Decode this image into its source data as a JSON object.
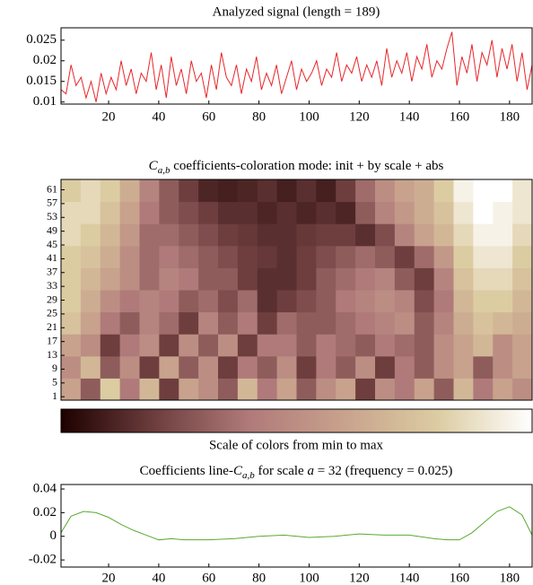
{
  "chart_data": [
    {
      "type": "line",
      "title": "Analyzed signal (length = 189)",
      "x": [
        1,
        3,
        5,
        7,
        9,
        11,
        13,
        15,
        17,
        19,
        21,
        23,
        25,
        27,
        29,
        31,
        33,
        35,
        37,
        39,
        41,
        43,
        45,
        47,
        49,
        51,
        53,
        55,
        57,
        59,
        61,
        63,
        65,
        67,
        69,
        71,
        73,
        75,
        77,
        79,
        81,
        83,
        85,
        87,
        89,
        91,
        93,
        95,
        97,
        99,
        101,
        103,
        105,
        107,
        109,
        111,
        113,
        115,
        117,
        119,
        121,
        123,
        125,
        127,
        129,
        131,
        133,
        135,
        137,
        139,
        141,
        143,
        145,
        147,
        149,
        151,
        153,
        155,
        157,
        159,
        161,
        163,
        165,
        167,
        169,
        171,
        173,
        175,
        177,
        179,
        181,
        183,
        185,
        187,
        189
      ],
      "series": [
        {
          "color": "#e8262a",
          "values": [
            0.013,
            0.012,
            0.019,
            0.014,
            0.016,
            0.011,
            0.015,
            0.01,
            0.017,
            0.012,
            0.016,
            0.013,
            0.02,
            0.014,
            0.018,
            0.012,
            0.017,
            0.015,
            0.022,
            0.013,
            0.019,
            0.011,
            0.021,
            0.014,
            0.018,
            0.012,
            0.02,
            0.015,
            0.017,
            0.011,
            0.019,
            0.013,
            0.022,
            0.016,
            0.014,
            0.019,
            0.012,
            0.018,
            0.015,
            0.021,
            0.013,
            0.017,
            0.014,
            0.019,
            0.012,
            0.016,
            0.02,
            0.013,
            0.018,
            0.015,
            0.017,
            0.02,
            0.014,
            0.018,
            0.016,
            0.022,
            0.015,
            0.019,
            0.017,
            0.021,
            0.015,
            0.019,
            0.016,
            0.02,
            0.014,
            0.023,
            0.016,
            0.02,
            0.017,
            0.022,
            0.015,
            0.021,
            0.018,
            0.024,
            0.016,
            0.02,
            0.018,
            0.023,
            0.027,
            0.014,
            0.021,
            0.017,
            0.024,
            0.015,
            0.022,
            0.019,
            0.025,
            0.016,
            0.023,
            0.018,
            0.024,
            0.015,
            0.022,
            0.013,
            0.019
          ]
        }
      ],
      "xlim": [
        1,
        189
      ],
      "xticks": [
        20,
        40,
        60,
        80,
        100,
        120,
        140,
        160,
        180
      ],
      "ylim": [
        0.0095,
        0.028
      ],
      "yticks": [
        0.01,
        0.015,
        0.02,
        0.025
      ]
    },
    {
      "type": "heatmap",
      "title_parts": [
        "C",
        "a,b",
        " coefficients-coloration mode: init + by scale + abs"
      ],
      "xlim": [
        0,
        189
      ],
      "ylim": [
        0,
        64
      ],
      "yticks": [
        1,
        5,
        9,
        13,
        17,
        21,
        25,
        29,
        33,
        37,
        41,
        45,
        49,
        53,
        57,
        61
      ],
      "zlim": [
        0,
        1
      ],
      "colormap": [
        "#1e0000",
        "#6e3e3e",
        "#b07a7a",
        "#c8a28c",
        "#dccca2",
        "#ffffff"
      ],
      "z": [
        [
          0.6,
          0.3,
          0.8,
          0.4,
          0.7,
          0.2,
          0.6,
          0.5,
          0.3,
          0.7,
          0.4,
          0.6,
          0.3,
          0.5,
          0.6,
          0.2,
          0.5,
          0.4,
          0.6,
          0.3,
          0.7,
          0.4,
          0.6,
          0.5
        ],
        [
          0.5,
          0.7,
          0.3,
          0.5,
          0.2,
          0.6,
          0.3,
          0.5,
          0.2,
          0.4,
          0.3,
          0.5,
          0.2,
          0.4,
          0.3,
          0.5,
          0.2,
          0.4,
          0.3,
          0.5,
          0.6,
          0.3,
          0.5,
          0.6
        ],
        [
          0.6,
          0.5,
          0.2,
          0.4,
          0.5,
          0.2,
          0.5,
          0.3,
          0.5,
          0.2,
          0.4,
          0.4,
          0.3,
          0.4,
          0.35,
          0.3,
          0.4,
          0.35,
          0.3,
          0.5,
          0.6,
          0.7,
          0.5,
          0.6
        ],
        [
          0.75,
          0.6,
          0.4,
          0.3,
          0.45,
          0.35,
          0.2,
          0.45,
          0.3,
          0.4,
          0.2,
          0.35,
          0.3,
          0.3,
          0.35,
          0.4,
          0.45,
          0.5,
          0.3,
          0.45,
          0.65,
          0.75,
          0.7,
          0.65
        ],
        [
          0.8,
          0.65,
          0.5,
          0.4,
          0.45,
          0.4,
          0.3,
          0.35,
          0.25,
          0.35,
          0.15,
          0.2,
          0.25,
          0.3,
          0.4,
          0.45,
          0.5,
          0.45,
          0.25,
          0.4,
          0.7,
          0.8,
          0.8,
          0.7
        ],
        [
          0.8,
          0.7,
          0.6,
          0.5,
          0.35,
          0.45,
          0.4,
          0.3,
          0.3,
          0.2,
          0.15,
          0.15,
          0.2,
          0.3,
          0.35,
          0.4,
          0.45,
          0.3,
          0.2,
          0.45,
          0.75,
          0.85,
          0.85,
          0.75
        ],
        [
          0.8,
          0.75,
          0.65,
          0.5,
          0.35,
          0.4,
          0.35,
          0.3,
          0.25,
          0.2,
          0.18,
          0.15,
          0.2,
          0.25,
          0.3,
          0.35,
          0.3,
          0.2,
          0.35,
          0.55,
          0.8,
          0.9,
          0.9,
          0.8
        ],
        [
          0.85,
          0.8,
          0.7,
          0.55,
          0.35,
          0.35,
          0.3,
          0.25,
          0.2,
          0.18,
          0.15,
          0.15,
          0.18,
          0.2,
          0.2,
          0.15,
          0.25,
          0.45,
          0.6,
          0.7,
          0.85,
          0.95,
          0.95,
          0.85
        ],
        [
          0.85,
          0.85,
          0.75,
          0.6,
          0.4,
          0.3,
          0.25,
          0.2,
          0.15,
          0.15,
          0.12,
          0.15,
          0.12,
          0.15,
          0.12,
          0.3,
          0.45,
          0.55,
          0.65,
          0.75,
          0.9,
          1,
          0.95,
          0.9
        ],
        [
          0.8,
          0.85,
          0.8,
          0.65,
          0.45,
          0.3,
          0.2,
          0.12,
          0.1,
          0.12,
          0.15,
          0.1,
          0.15,
          0.1,
          0.2,
          0.35,
          0.5,
          0.6,
          0.65,
          0.8,
          0.95,
          1,
          1,
          0.9
        ]
      ],
      "colorbar_label": "Scale of colors from min to max"
    },
    {
      "type": "line",
      "title_parts": [
        "Coefficients line-",
        "C",
        "a,b",
        " for scale ",
        "a",
        " = 32 (frequency = 0.025)"
      ],
      "x": [
        1,
        5,
        10,
        15,
        20,
        25,
        30,
        35,
        40,
        45,
        50,
        60,
        70,
        80,
        90,
        100,
        110,
        120,
        130,
        140,
        150,
        155,
        160,
        165,
        170,
        175,
        180,
        185,
        189
      ],
      "series": [
        {
          "color": "#5aaa32",
          "values": [
            0.003,
            0.017,
            0.021,
            0.02,
            0.016,
            0.01,
            0.005,
            0.001,
            -0.003,
            -0.002,
            -0.003,
            -0.003,
            -0.002,
            0.0,
            0.001,
            -0.001,
            0.0,
            0.002,
            0.001,
            0.001,
            -0.002,
            -0.003,
            -0.003,
            0.003,
            0.012,
            0.021,
            0.025,
            0.018,
            0.001
          ]
        }
      ],
      "xlim": [
        1,
        189
      ],
      "xticks": [
        20,
        40,
        60,
        80,
        100,
        120,
        140,
        160,
        180
      ],
      "ylim": [
        -0.026,
        0.0438
      ],
      "yticks": [
        -0.02,
        0,
        0.02,
        0.04
      ]
    }
  ]
}
